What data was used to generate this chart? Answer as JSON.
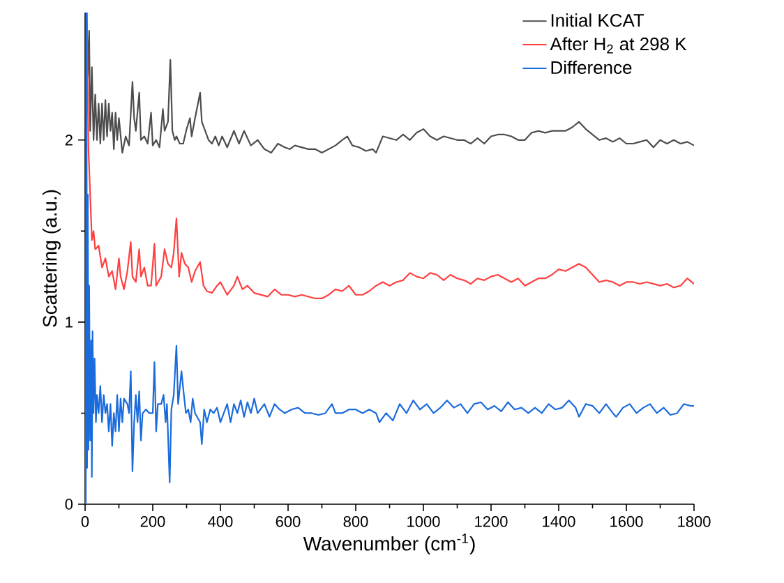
{
  "chart_data": {
    "type": "line",
    "xlabel": "Wavenumber (cm$^{-1}$)",
    "ylabel": "Scattering (a.u.)",
    "legend": "top right",
    "xlim": [
      0,
      1800
    ],
    "ylim": [
      0,
      2.7
    ],
    "xticks": [
      0,
      200,
      400,
      600,
      800,
      1000,
      1200,
      1400,
      1600,
      1800
    ],
    "yticks": [
      0,
      1,
      2
    ],
    "series": [
      {
        "name": "Initial KCAT",
        "color": "#4d4d4d",
        "x": [
          5,
          8,
          12,
          15,
          20,
          25,
          30,
          35,
          40,
          45,
          50,
          55,
          60,
          65,
          70,
          75,
          80,
          85,
          90,
          95,
          100,
          110,
          120,
          130,
          140,
          145,
          150,
          160,
          165,
          175,
          185,
          195,
          200,
          210,
          220,
          230,
          235,
          245,
          252,
          258,
          265,
          270,
          280,
          290,
          300,
          310,
          315,
          325,
          340,
          345,
          355,
          365,
          375,
          385,
          395,
          405,
          420,
          440,
          455,
          470,
          490,
          510,
          530,
          550,
          570,
          590,
          605,
          620,
          640,
          660,
          680,
          700,
          720,
          740,
          760,
          775,
          790,
          810,
          830,
          850,
          860,
          880,
          900,
          920,
          940,
          960,
          980,
          1000,
          1020,
          1040,
          1060,
          1080,
          1100,
          1120,
          1140,
          1160,
          1180,
          1200,
          1220,
          1240,
          1260,
          1280,
          1300,
          1320,
          1340,
          1360,
          1380,
          1400,
          1420,
          1440,
          1460,
          1480,
          1500,
          1520,
          1540,
          1560,
          1580,
          1600,
          1620,
          1640,
          1660,
          1680,
          1700,
          1720,
          1740,
          1760,
          1780,
          1800
        ],
        "values": [
          2.7,
          2.35,
          2.6,
          2.05,
          2.4,
          2.0,
          2.25,
          2.0,
          2.2,
          1.98,
          2.2,
          2.0,
          2.22,
          2.02,
          2.2,
          2.05,
          2.15,
          1.95,
          2.15,
          2.0,
          2.12,
          1.93,
          2.02,
          1.97,
          2.32,
          2.12,
          2.05,
          2.26,
          2.0,
          2.02,
          1.98,
          2.15,
          1.97,
          2.0,
          1.96,
          2.17,
          2.05,
          2.1,
          2.44,
          2.05,
          2.0,
          2.02,
          1.98,
          1.98,
          2.06,
          2.12,
          2.02,
          2.12,
          2.26,
          2.1,
          2.05,
          2.0,
          1.98,
          2.02,
          1.97,
          2.02,
          1.96,
          2.05,
          1.98,
          2.05,
          1.97,
          2.0,
          1.95,
          1.93,
          1.98,
          1.96,
          1.95,
          1.97,
          1.96,
          1.95,
          1.95,
          1.93,
          1.95,
          1.97,
          2.0,
          2.02,
          1.97,
          1.96,
          1.94,
          1.95,
          1.93,
          2.02,
          2.01,
          2.0,
          2.03,
          2.0,
          2.04,
          2.06,
          2.02,
          2.0,
          2.02,
          2.01,
          2.0,
          2.0,
          1.98,
          2.01,
          1.98,
          2.02,
          2.03,
          2.03,
          2.02,
          2.0,
          2.0,
          2.04,
          2.05,
          2.04,
          2.05,
          2.05,
          2.05,
          2.07,
          2.1,
          2.06,
          2.03,
          2.0,
          2.01,
          1.99,
          2.01,
          1.98,
          1.98,
          1.99,
          2.0,
          1.96,
          2.0,
          1.98,
          2.0,
          1.98,
          1.99,
          1.97
        ]
      },
      {
        "name": "After H$_{2}$ at 298 K",
        "color": "#ff4040",
        "x": [
          5,
          10,
          15,
          20,
          25,
          30,
          40,
          50,
          60,
          70,
          80,
          90,
          100,
          105,
          115,
          125,
          135,
          140,
          150,
          160,
          165,
          175,
          185,
          195,
          205,
          210,
          225,
          235,
          245,
          255,
          262,
          270,
          278,
          285,
          295,
          305,
          315,
          325,
          340,
          350,
          360,
          375,
          390,
          400,
          420,
          440,
          450,
          465,
          480,
          500,
          520,
          540,
          560,
          580,
          600,
          620,
          640,
          660,
          680,
          700,
          720,
          740,
          760,
          780,
          800,
          820,
          840,
          860,
          880,
          900,
          920,
          940,
          960,
          980,
          1000,
          1020,
          1040,
          1060,
          1080,
          1100,
          1120,
          1140,
          1160,
          1180,
          1200,
          1220,
          1240,
          1260,
          1280,
          1300,
          1320,
          1340,
          1360,
          1380,
          1400,
          1420,
          1440,
          1460,
          1480,
          1500,
          1520,
          1540,
          1560,
          1580,
          1600,
          1620,
          1640,
          1660,
          1680,
          1700,
          1720,
          1740,
          1760,
          1780,
          1800
        ],
        "values": [
          2.7,
          1.95,
          1.7,
          1.45,
          1.5,
          1.4,
          1.42,
          1.3,
          1.35,
          1.25,
          1.28,
          1.18,
          1.35,
          1.25,
          1.18,
          1.28,
          1.44,
          1.25,
          1.22,
          1.4,
          1.25,
          1.3,
          1.2,
          1.2,
          1.43,
          1.2,
          1.25,
          1.4,
          1.32,
          1.3,
          1.38,
          1.57,
          1.25,
          1.38,
          1.32,
          1.3,
          1.22,
          1.28,
          1.33,
          1.2,
          1.17,
          1.16,
          1.2,
          1.22,
          1.15,
          1.2,
          1.25,
          1.18,
          1.2,
          1.16,
          1.15,
          1.14,
          1.18,
          1.15,
          1.15,
          1.14,
          1.15,
          1.14,
          1.13,
          1.13,
          1.15,
          1.18,
          1.17,
          1.2,
          1.15,
          1.15,
          1.17,
          1.2,
          1.22,
          1.2,
          1.22,
          1.23,
          1.27,
          1.25,
          1.24,
          1.27,
          1.26,
          1.23,
          1.26,
          1.24,
          1.23,
          1.21,
          1.24,
          1.23,
          1.25,
          1.26,
          1.24,
          1.22,
          1.24,
          1.2,
          1.22,
          1.24,
          1.24,
          1.26,
          1.29,
          1.28,
          1.3,
          1.32,
          1.3,
          1.26,
          1.22,
          1.23,
          1.22,
          1.2,
          1.22,
          1.22,
          1.21,
          1.22,
          1.21,
          1.2,
          1.21,
          1.19,
          1.2,
          1.24,
          1.21
        ]
      },
      {
        "name": "Difference",
        "color": "#1a6bdc",
        "x": [
          2,
          4,
          6,
          8,
          10,
          12,
          15,
          18,
          20,
          22,
          25,
          28,
          32,
          35,
          40,
          45,
          50,
          55,
          60,
          65,
          70,
          75,
          80,
          85,
          90,
          95,
          100,
          105,
          110,
          115,
          125,
          130,
          135,
          140,
          145,
          150,
          155,
          160,
          165,
          170,
          180,
          190,
          200,
          205,
          210,
          215,
          225,
          232,
          238,
          242,
          250,
          255,
          262,
          270,
          275,
          285,
          292,
          298,
          305,
          312,
          318,
          325,
          340,
          345,
          352,
          360,
          370,
          380,
          390,
          400,
          410,
          420,
          430,
          440,
          450,
          460,
          470,
          480,
          490,
          500,
          510,
          530,
          545,
          560,
          575,
          590,
          610,
          630,
          650,
          670,
          690,
          710,
          730,
          740,
          760,
          780,
          800,
          820,
          840,
          860,
          870,
          890,
          910,
          930,
          950,
          970,
          990,
          1010,
          1030,
          1050,
          1070,
          1090,
          1110,
          1130,
          1150,
          1170,
          1190,
          1210,
          1230,
          1250,
          1270,
          1290,
          1310,
          1330,
          1350,
          1370,
          1390,
          1410,
          1430,
          1450,
          1460,
          1480,
          1500,
          1520,
          1540,
          1560,
          1570,
          1590,
          1610,
          1630,
          1650,
          1670,
          1690,
          1710,
          1730,
          1750,
          1770,
          1790,
          1800
        ],
        "values": [
          0.0,
          2.7,
          0.2,
          1.7,
          0.3,
          1.2,
          0.35,
          0.9,
          0.15,
          0.95,
          0.5,
          0.8,
          0.45,
          0.6,
          0.5,
          0.65,
          0.45,
          0.6,
          0.5,
          0.55,
          0.4,
          0.55,
          0.32,
          0.5,
          0.4,
          0.6,
          0.4,
          0.58,
          0.45,
          0.58,
          0.55,
          0.5,
          0.73,
          0.18,
          0.45,
          0.6,
          0.45,
          0.62,
          0.35,
          0.5,
          0.52,
          0.5,
          0.5,
          0.78,
          0.4,
          0.55,
          0.55,
          0.6,
          0.45,
          0.55,
          0.12,
          0.52,
          0.6,
          0.87,
          0.55,
          0.73,
          0.6,
          0.5,
          0.52,
          0.45,
          0.58,
          0.5,
          0.45,
          0.33,
          0.52,
          0.45,
          0.52,
          0.5,
          0.53,
          0.45,
          0.5,
          0.55,
          0.45,
          0.55,
          0.5,
          0.57,
          0.48,
          0.56,
          0.5,
          0.58,
          0.5,
          0.55,
          0.48,
          0.55,
          0.52,
          0.5,
          0.52,
          0.53,
          0.5,
          0.5,
          0.49,
          0.5,
          0.55,
          0.5,
          0.5,
          0.52,
          0.52,
          0.5,
          0.52,
          0.5,
          0.45,
          0.5,
          0.46,
          0.55,
          0.5,
          0.57,
          0.52,
          0.55,
          0.5,
          0.53,
          0.57,
          0.53,
          0.55,
          0.5,
          0.55,
          0.56,
          0.52,
          0.54,
          0.51,
          0.56,
          0.52,
          0.53,
          0.5,
          0.53,
          0.5,
          0.55,
          0.52,
          0.53,
          0.57,
          0.53,
          0.48,
          0.55,
          0.54,
          0.5,
          0.55,
          0.5,
          0.48,
          0.53,
          0.55,
          0.5,
          0.53,
          0.55,
          0.5,
          0.53,
          0.49,
          0.5,
          0.55,
          0.54,
          0.54
        ]
      }
    ]
  }
}
